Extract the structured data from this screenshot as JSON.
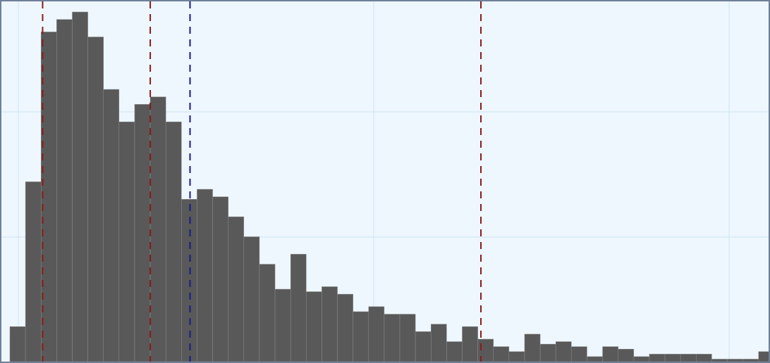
{
  "chart_data": {
    "type": "bar",
    "title": "",
    "xlabel": "",
    "ylabel": "",
    "bin_count": 49,
    "xlim": [
      0,
      49
    ],
    "ylim": [
      0,
      142
    ],
    "values": [
      14,
      72,
      132,
      137,
      140,
      130,
      109,
      96,
      103,
      106,
      96,
      65,
      69,
      66,
      58,
      50,
      39,
      29,
      43,
      28,
      30,
      27,
      20,
      22,
      19,
      19,
      12,
      15,
      8,
      14,
      9,
      6,
      4,
      11,
      7,
      8,
      6,
      2,
      6,
      5,
      2,
      3,
      3,
      3,
      3,
      1,
      1,
      1,
      4
    ],
    "reference_lines": [
      {
        "x": 2.1,
        "style": "dashed",
        "color": "#8b1a1a"
      },
      {
        "x": 9.0,
        "style": "dashed",
        "color": "#8b1a1a"
      },
      {
        "x": 11.55,
        "style": "dashed",
        "color": "#1a1a8b"
      },
      {
        "x": 30.2,
        "style": "dashed",
        "color": "#8b1a1a"
      }
    ],
    "grid": true,
    "legend": "none",
    "colors": {
      "bar": "#595959",
      "bar_edge": "#8c8c8c",
      "background": "#eef7fe",
      "grid": "#cde3f0",
      "frame": "#6e7f99"
    }
  }
}
